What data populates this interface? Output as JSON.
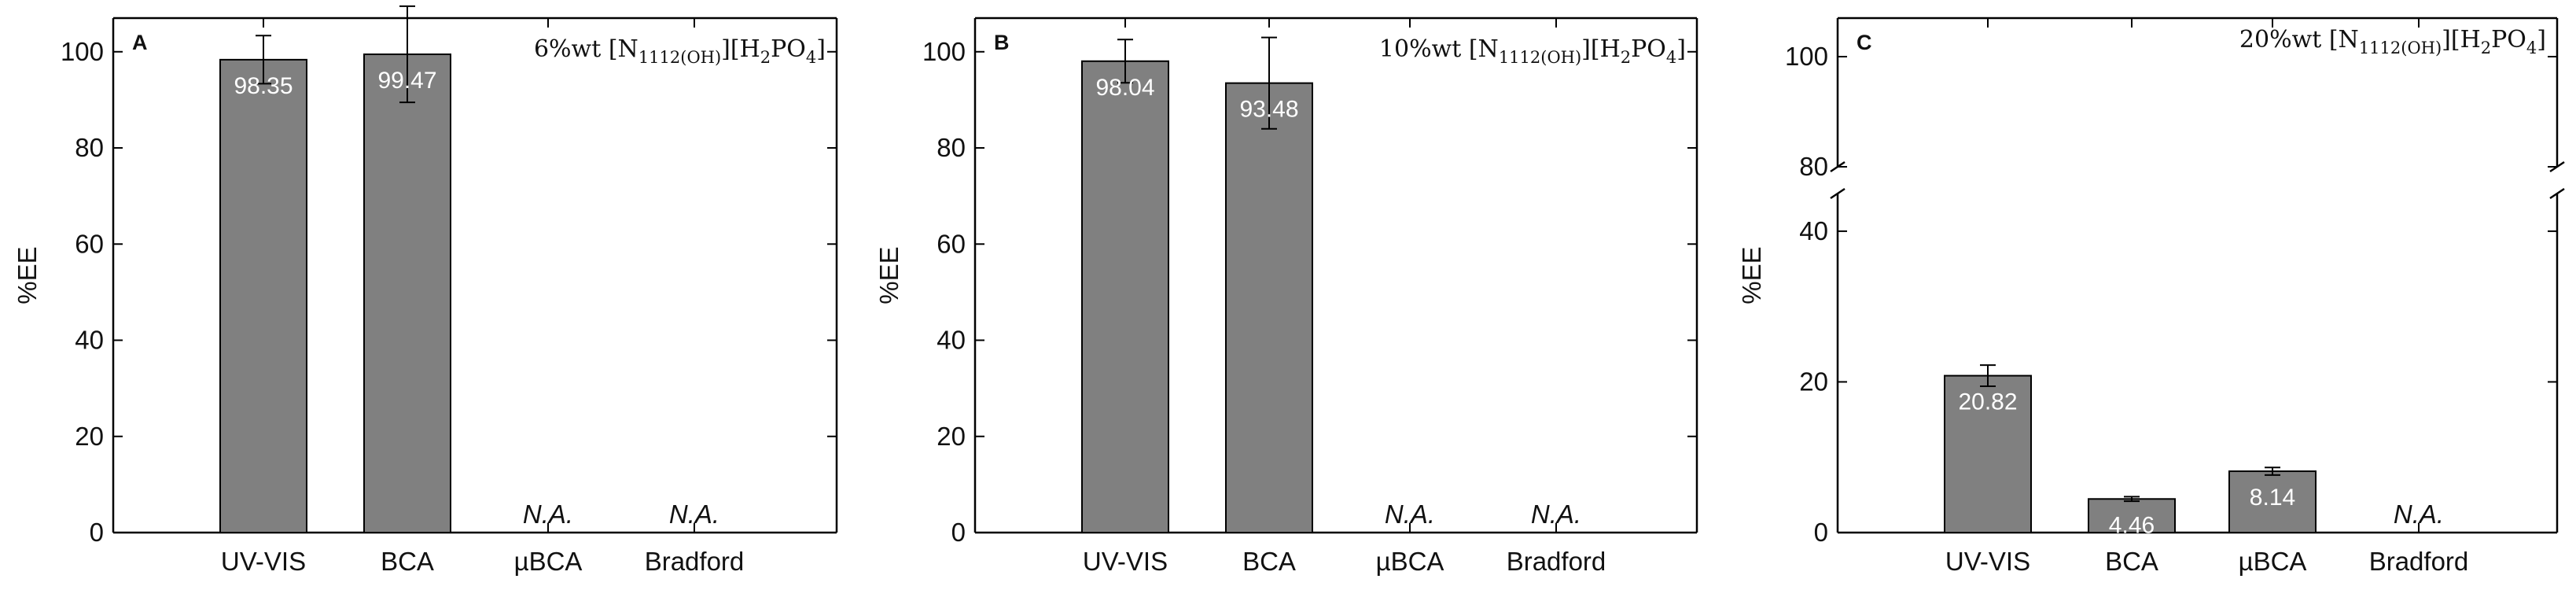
{
  "chart_data": [
    {
      "type": "bar",
      "panel_letter": "A",
      "annotation": {
        "prefix": "6%wt ",
        "formula_parts": [
          "[N",
          "1112(OH)",
          "][H",
          "2",
          "PO",
          "4",
          "]"
        ]
      },
      "ylabel": "%EE",
      "ylim": [
        0,
        107
      ],
      "yticks": [
        0,
        20,
        40,
        60,
        80,
        100
      ],
      "ytick_labels": [
        "0",
        "20",
        "40",
        "60",
        "80",
        "100"
      ],
      "categories": [
        "UV-VIS",
        "BCA",
        "µBCA",
        "Bradford"
      ],
      "values": [
        98.35,
        99.47,
        null,
        null
      ],
      "errors": [
        5.0,
        10.0,
        null,
        null
      ],
      "value_labels": [
        "98.35",
        "99.47",
        "N.A.",
        "N.A."
      ],
      "color": "#808080"
    },
    {
      "type": "bar",
      "panel_letter": "B",
      "annotation": {
        "prefix": "10%wt ",
        "formula_parts": [
          "[N",
          "1112(OH)",
          "][H",
          "2",
          "PO",
          "4",
          "]"
        ]
      },
      "ylabel": "%EE",
      "ylim": [
        0,
        107
      ],
      "yticks": [
        0,
        20,
        40,
        60,
        80,
        100
      ],
      "ytick_labels": [
        "0",
        "20",
        "40",
        "60",
        "80",
        "100"
      ],
      "categories": [
        "UV-VIS",
        "BCA",
        "µBCA",
        "Bradford"
      ],
      "values": [
        98.04,
        93.48,
        null,
        null
      ],
      "errors": [
        4.5,
        9.5,
        null,
        null
      ],
      "value_labels": [
        "98.04",
        "93.48",
        "N.A.",
        "N.A."
      ],
      "color": "#808080"
    },
    {
      "type": "bar",
      "panel_letter": "C",
      "annotation": {
        "prefix": "20%wt ",
        "formula_parts": [
          "[N",
          "1112(OH)",
          "][H",
          "2",
          "PO",
          "4",
          "]"
        ]
      },
      "ylabel": "%EE",
      "broken_axis": {
        "lower_range": [
          0,
          45
        ],
        "upper_range": [
          80,
          107
        ]
      },
      "yticks": [
        0,
        20,
        40,
        80,
        100
      ],
      "ytick_labels": [
        "0",
        "20",
        "40",
        "80",
        "100"
      ],
      "categories": [
        "UV-VIS",
        "BCA",
        "µBCA",
        "Bradford"
      ],
      "values": [
        20.82,
        4.46,
        8.14,
        null
      ],
      "errors": [
        1.4,
        0.3,
        0.5,
        null
      ],
      "value_labels": [
        "20.82",
        "4.46",
        "8.14",
        "N.A."
      ],
      "color": "#808080"
    }
  ]
}
